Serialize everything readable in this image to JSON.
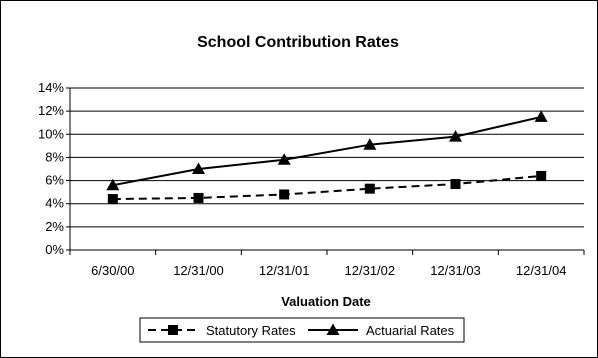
{
  "chart_data": {
    "type": "line",
    "title": "School Contribution Rates",
    "xlabel": "Valuation Date",
    "ylabel": "",
    "categories": [
      "6/30/00",
      "12/31/00",
      "12/31/01",
      "12/31/02",
      "12/31/03",
      "12/31/04"
    ],
    "ylim": [
      0,
      14
    ],
    "yticks": [
      "0%",
      "2%",
      "4%",
      "6%",
      "8%",
      "10%",
      "12%",
      "14%"
    ],
    "grid": true,
    "legend_position": "bottom",
    "series": [
      {
        "name": "Statutory Rates",
        "marker": "square",
        "line": "dashed",
        "color": "#000000",
        "values": [
          4.4,
          4.5,
          4.8,
          5.3,
          5.7,
          6.4
        ]
      },
      {
        "name": "Actuarial Rates",
        "marker": "triangle",
        "line": "solid",
        "color": "#000000",
        "values": [
          5.6,
          7.0,
          7.8,
          9.1,
          9.8,
          11.5
        ]
      }
    ]
  }
}
